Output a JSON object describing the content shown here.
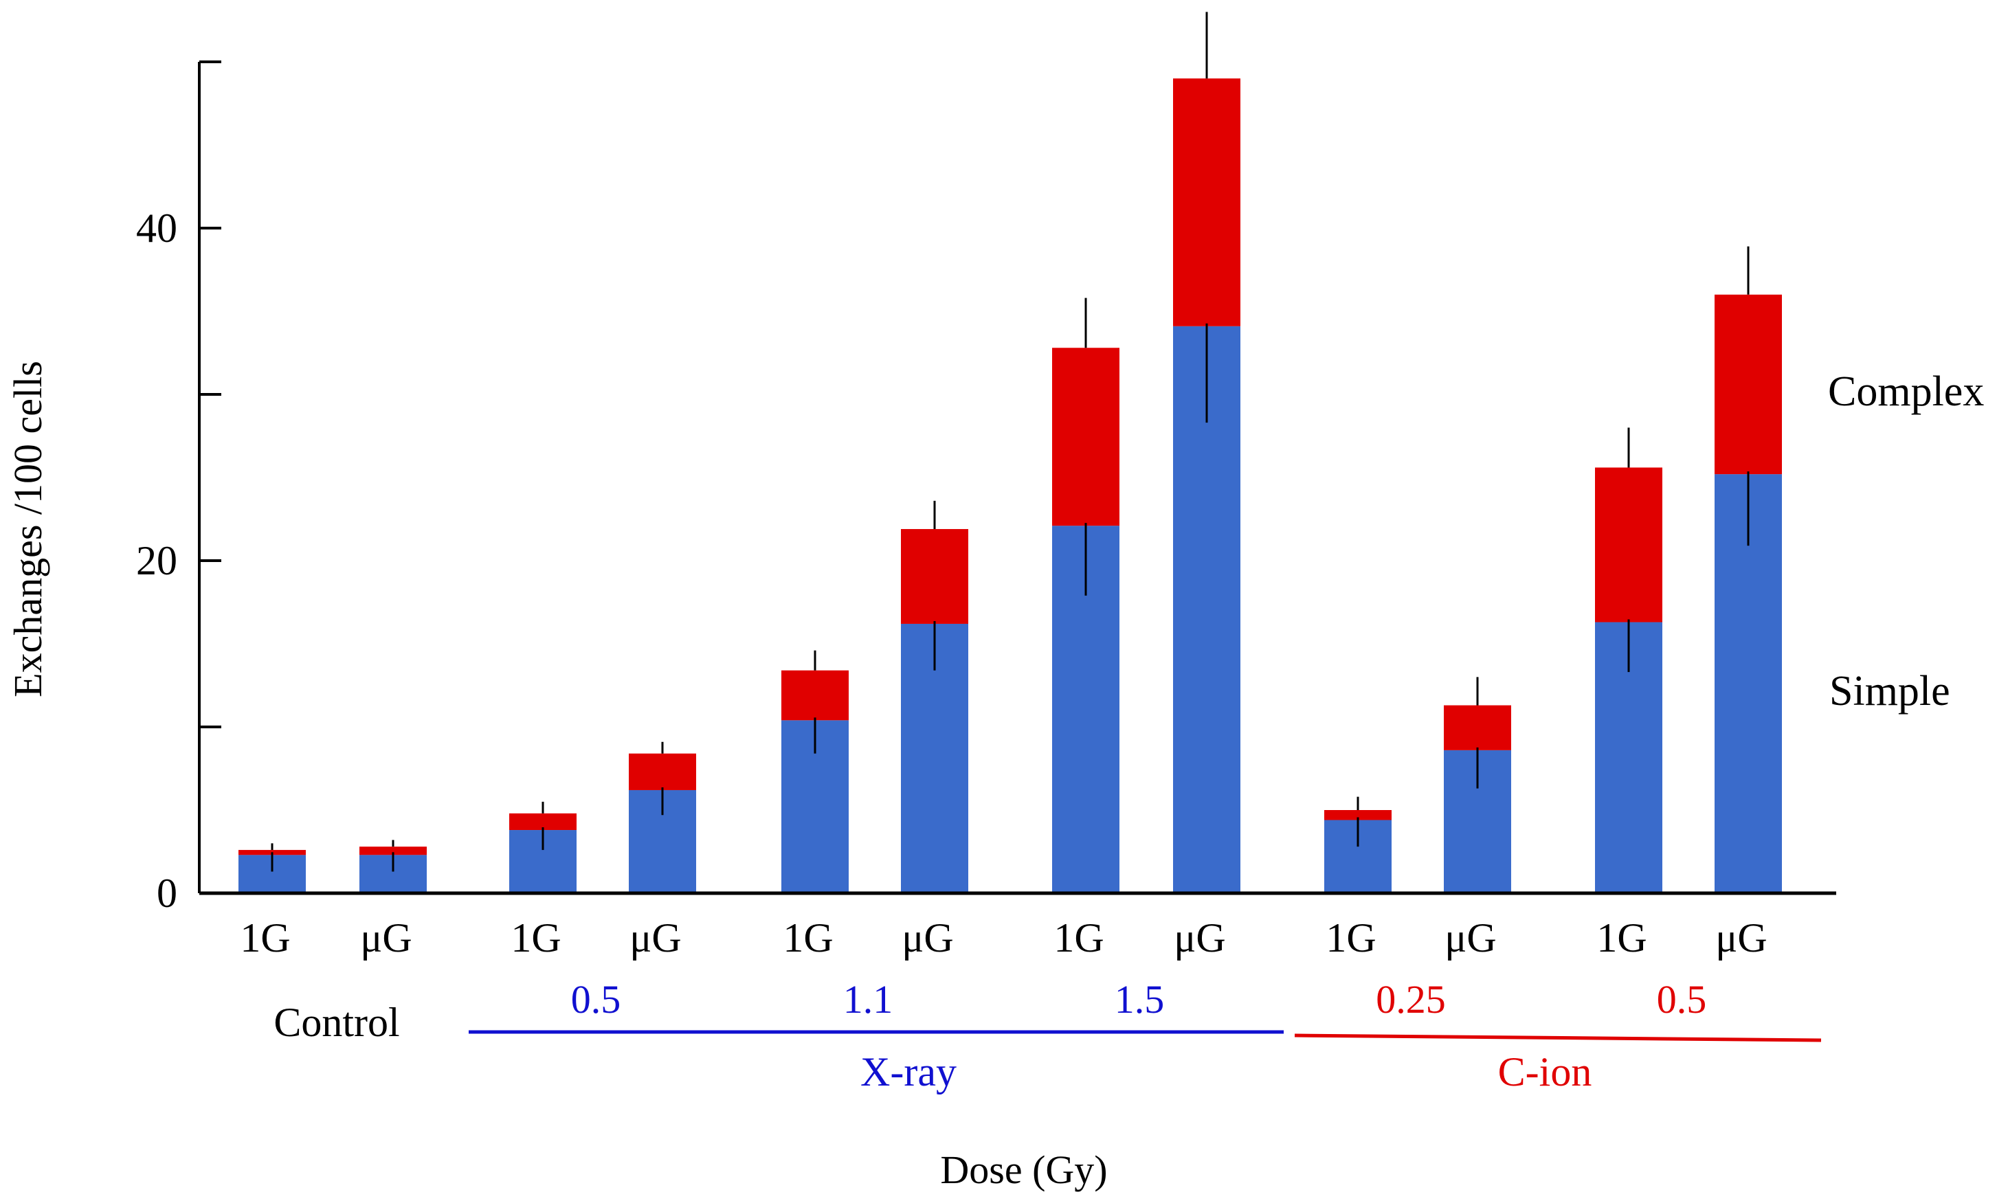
{
  "chart_data": {
    "type": "bar",
    "stacked": true,
    "title": "",
    "xlabel": "Dose (Gy)",
    "ylabel": "Exchanges /100 cells",
    "ylim": [
      0,
      50
    ],
    "yticks": [
      0,
      20,
      40
    ],
    "minor_yticks": [
      10,
      30,
      50
    ],
    "categories": [
      "1G",
      "μG",
      "1G",
      "μG",
      "1G",
      "μG",
      "1G",
      "μG",
      "1G",
      "μG",
      "1G",
      "μG"
    ],
    "series": [
      {
        "name": "Simple",
        "color": "#3A6BCB",
        "values": [
          2.3,
          2.3,
          3.8,
          6.2,
          10.4,
          16.2,
          22.1,
          34.1,
          4.4,
          8.6,
          16.3,
          25.2
        ],
        "errors": [
          1.0,
          1.0,
          1.2,
          1.5,
          2.0,
          2.8,
          4.2,
          5.8,
          1.6,
          2.3,
          3.0,
          4.3
        ]
      },
      {
        "name": "Complex",
        "color": "#E00000",
        "values": [
          0.3,
          0.5,
          1.0,
          2.2,
          3.0,
          5.7,
          10.7,
          14.9,
          0.6,
          2.7,
          9.3,
          10.8
        ],
        "errors": [
          0.4,
          0.4,
          0.7,
          0.7,
          1.2,
          1.7,
          3.0,
          4.0,
          0.8,
          1.7,
          2.4,
          2.9
        ]
      }
    ],
    "groups": [
      {
        "category_indices": [
          0,
          1
        ],
        "dose": "",
        "name": "Control",
        "color": "#000000"
      },
      {
        "category_indices": [
          2,
          3
        ],
        "dose": "0.5",
        "name": "X-ray",
        "color": "#1010D0"
      },
      {
        "category_indices": [
          4,
          5
        ],
        "dose": "1.1",
        "name": "X-ray",
        "color": "#1010D0"
      },
      {
        "category_indices": [
          6,
          7
        ],
        "dose": "1.5",
        "name": "X-ray",
        "color": "#1010D0"
      },
      {
        "category_indices": [
          8,
          9
        ],
        "dose": "0.25",
        "name": "C-ion",
        "color": "#E00000"
      },
      {
        "category_indices": [
          10,
          11
        ],
        "dose": "0.5",
        "name": "C-ion",
        "color": "#E00000"
      }
    ],
    "group_labels": {
      "control": "Control",
      "xray": "X-ray",
      "cion": "C-ion"
    },
    "legend": {
      "placement": "right",
      "complex": "Complex",
      "simple": "Simple"
    }
  }
}
